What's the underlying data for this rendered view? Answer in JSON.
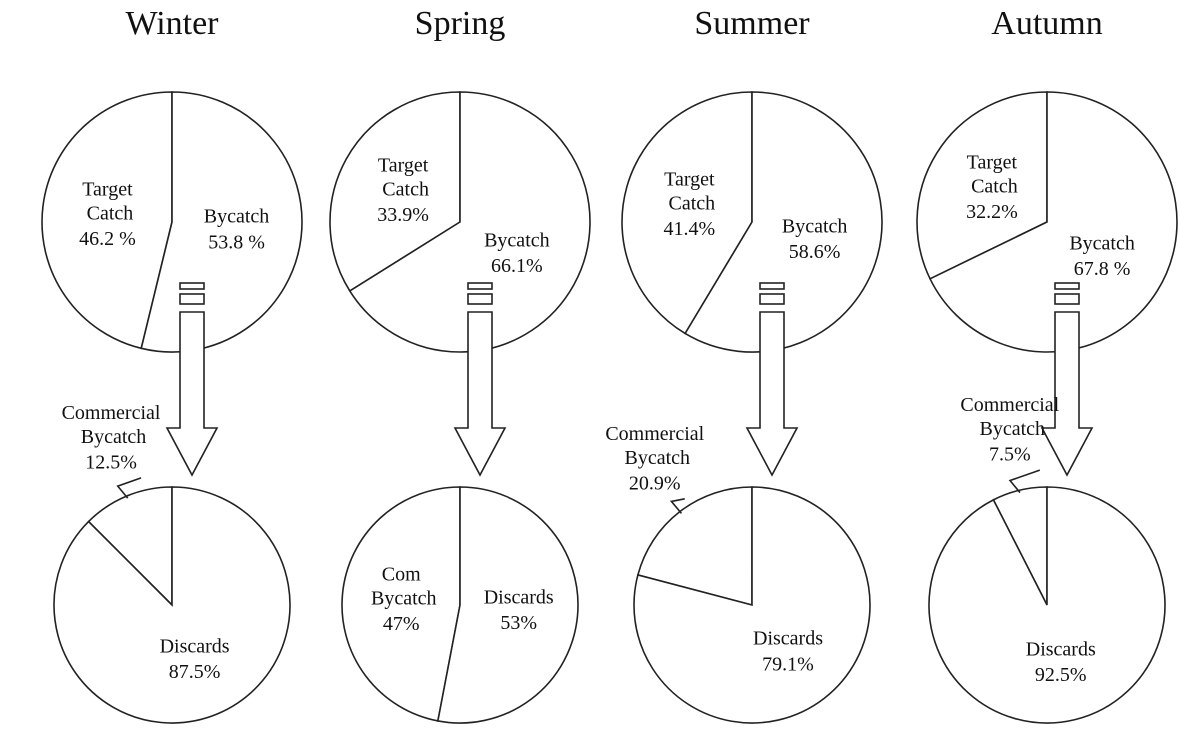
{
  "chart_data": [
    {
      "type": "pie",
      "title": "Winter",
      "categories": [
        "Target Catch",
        "Bycatch"
      ],
      "values": [
        46.2,
        53.8
      ],
      "value_labels": [
        "46.2 %",
        "53.8 %"
      ]
    },
    {
      "type": "pie",
      "categories": [
        "Commercial Bycatch",
        "Discards"
      ],
      "values": [
        12.5,
        87.5
      ],
      "value_labels": [
        "12.5%",
        "87.5%"
      ]
    },
    {
      "type": "pie",
      "title": "Spring",
      "categories": [
        "Target Catch",
        "Bycatch"
      ],
      "values": [
        33.9,
        66.1
      ],
      "value_labels": [
        "33.9%",
        "66.1%"
      ]
    },
    {
      "type": "pie",
      "categories": [
        "Com Bycatch",
        "Discards"
      ],
      "values": [
        47,
        53
      ],
      "value_labels": [
        "47%",
        "53%"
      ]
    },
    {
      "type": "pie",
      "title": "Summer",
      "categories": [
        "Target Catch",
        "Bycatch"
      ],
      "values": [
        41.4,
        58.6
      ],
      "value_labels": [
        "41.4%",
        "58.6%"
      ]
    },
    {
      "type": "pie",
      "categories": [
        "Commercial Bycatch",
        "Discards"
      ],
      "values": [
        20.9,
        79.1
      ],
      "value_labels": [
        "20.9%",
        "79.1%"
      ]
    },
    {
      "type": "pie",
      "title": "Autumn",
      "categories": [
        "Target Catch",
        "Bycatch"
      ],
      "values": [
        32.2,
        67.8
      ],
      "value_labels": [
        "32.2%",
        "67.8 %"
      ]
    },
    {
      "type": "pie",
      "categories": [
        "Commercial Bycatch",
        "Discards"
      ],
      "values": [
        7.5,
        92.5
      ],
      "value_labels": [
        "7.5%",
        "92.5%"
      ]
    }
  ]
}
